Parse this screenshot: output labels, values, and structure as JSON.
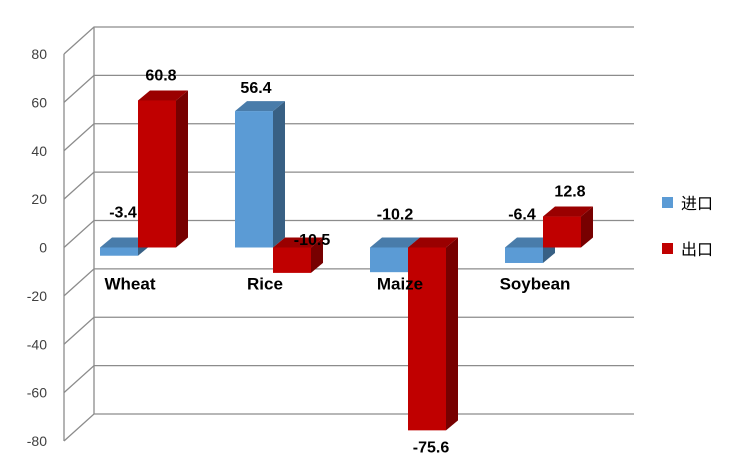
{
  "chart_data": {
    "type": "bar",
    "categories": [
      "Wheat",
      "Rice",
      "Maize",
      "Soybean"
    ],
    "series": [
      {
        "name": "进口",
        "values": [
          -3.4,
          56.4,
          -10.2,
          -6.4
        ],
        "color": "#5b9bd5"
      },
      {
        "name": "出口",
        "values": [
          60.8,
          -10.5,
          -75.6,
          12.8
        ],
        "color": "#c00000"
      }
    ],
    "title": "",
    "xlabel": "",
    "ylabel": "",
    "ylim": [
      -80,
      80
    ],
    "yticks": [
      "80",
      "60",
      "40",
      "20",
      "0",
      "-20",
      "-40",
      "-60",
      "-80"
    ],
    "data_labels": [
      [
        "-3.4",
        "56.4",
        "-10.2",
        "-6.4"
      ],
      [
        "60.8",
        "-10.5",
        "-75.6",
        "12.8"
      ]
    ],
    "grid": true,
    "legend_position": "right",
    "three_d": true
  }
}
